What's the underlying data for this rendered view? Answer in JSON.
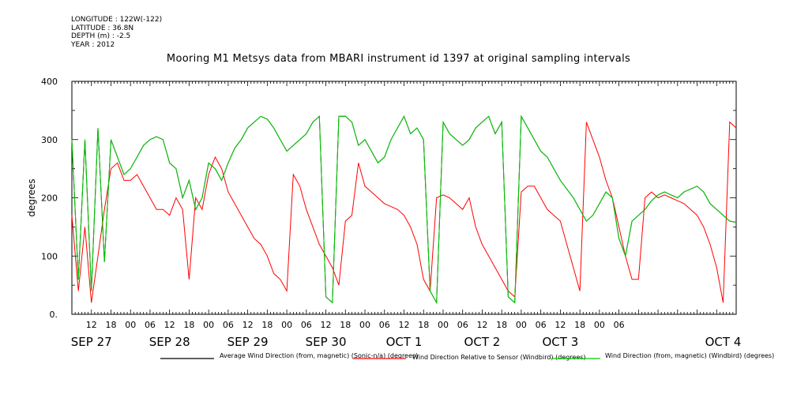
{
  "meta": {
    "longitude": "LONGITUDE : 122W(-122)",
    "latitude": "LATITUDE : 36.8N",
    "depth": "DEPTH (m) : -2.5",
    "year": "YEAR : 2012"
  },
  "chart_data": {
    "type": "line",
    "title": "Mooring M1 Metsys data from MBARI instrument id 1397 at original sampling intervals",
    "ylabel": "degrees",
    "xlabel": "",
    "ylim": [
      0,
      400
    ],
    "yticks": [
      "0.",
      "100",
      "200",
      "300",
      "400"
    ],
    "xlim_hours": [
      6,
      210
    ],
    "x_hour_ticks": [
      "12",
      "18",
      "00",
      "06",
      "12",
      "18",
      "00",
      "06",
      "12",
      "18",
      "00",
      "06",
      "12",
      "18",
      "00",
      "06",
      "12",
      "18",
      "00",
      "06",
      "12",
      "18",
      "00",
      "06",
      "12",
      "18",
      "00",
      "06"
    ],
    "day_labels": [
      "SEP 27",
      "SEP 28",
      "SEP 29",
      "SEP 30",
      "OCT 1",
      "OCT 2",
      "OCT 3",
      "OCT 4"
    ],
    "series": [
      {
        "name": "Average Wind Direction (from, magnetic) (Sonic-n/a) (degrees)",
        "color": "#000000",
        "x": [
          6,
          8,
          10,
          12,
          14,
          16,
          18,
          20,
          22,
          24,
          26,
          28,
          30,
          32,
          34,
          36,
          38,
          40,
          42,
          44,
          46,
          48,
          50,
          52,
          54,
          56,
          58,
          60,
          62,
          64,
          66,
          68,
          70,
          72,
          74,
          76,
          78,
          80,
          82,
          84,
          86,
          88,
          90,
          92,
          94,
          96,
          98,
          100,
          102,
          104,
          106,
          108,
          110,
          112,
          114,
          116,
          118,
          120,
          122,
          124,
          126,
          128,
          130,
          132,
          134,
          136,
          138,
          140,
          142,
          144,
          146,
          148,
          150,
          152,
          154,
          156,
          158,
          160,
          162,
          164,
          166,
          168,
          170,
          172,
          174,
          176,
          178,
          180,
          182,
          184,
          186,
          188,
          190,
          192,
          194,
          196,
          198,
          200,
          202,
          204,
          206,
          208,
          210
        ],
        "values": [
          300,
          60,
          300,
          40,
          320,
          90,
          300,
          270,
          240,
          250,
          270,
          290,
          300,
          305,
          300,
          260,
          250,
          200,
          230,
          180,
          200,
          260,
          250,
          230,
          260,
          285,
          300,
          320,
          330,
          340,
          335,
          320,
          300,
          280,
          290,
          300,
          310,
          330,
          340,
          30,
          20,
          340,
          340,
          330,
          290,
          300,
          280,
          260,
          270,
          300,
          320,
          340,
          310,
          320,
          300,
          40,
          20,
          330,
          310,
          300,
          290,
          300,
          320,
          330,
          340,
          310,
          330,
          30,
          20,
          340,
          320,
          300,
          280,
          270,
          250,
          230,
          215,
          200,
          180,
          160,
          170,
          190,
          210,
          200,
          130,
          100,
          160,
          170,
          180,
          195,
          205,
          210,
          205,
          200,
          210,
          215,
          220,
          210,
          190,
          180,
          170,
          160,
          158
        ]
      },
      {
        "name": "Wind Direction Relative to Sensor (Windbird) (degrees)",
        "color": "#ff0000",
        "x": [
          6,
          8,
          10,
          12,
          14,
          16,
          18,
          20,
          22,
          24,
          26,
          28,
          30,
          32,
          34,
          36,
          38,
          40,
          42,
          44,
          46,
          48,
          50,
          52,
          54,
          56,
          58,
          60,
          62,
          64,
          66,
          68,
          70,
          72,
          74,
          76,
          78,
          80,
          82,
          84,
          86,
          88,
          90,
          92,
          94,
          96,
          98,
          100,
          102,
          104,
          106,
          108,
          110,
          112,
          114,
          116,
          118,
          120,
          122,
          124,
          126,
          128,
          130,
          132,
          134,
          136,
          138,
          140,
          142,
          144,
          146,
          148,
          150,
          152,
          154,
          156,
          158,
          160,
          162,
          164,
          166,
          168,
          170,
          172,
          174,
          176,
          178,
          180,
          182,
          184,
          186,
          188,
          190,
          192,
          194,
          196,
          198,
          200,
          202,
          204,
          206,
          208,
          210
        ],
        "values": [
          170,
          40,
          150,
          20,
          100,
          180,
          250,
          260,
          230,
          230,
          240,
          220,
          200,
          180,
          180,
          170,
          200,
          180,
          60,
          200,
          180,
          240,
          270,
          250,
          210,
          190,
          170,
          150,
          130,
          120,
          100,
          70,
          60,
          40,
          240,
          220,
          180,
          150,
          120,
          100,
          80,
          50,
          160,
          170,
          260,
          220,
          210,
          200,
          190,
          185,
          180,
          170,
          150,
          120,
          60,
          40,
          200,
          205,
          200,
          190,
          180,
          200,
          150,
          120,
          100,
          80,
          60,
          40,
          30,
          210,
          220,
          220,
          200,
          180,
          170,
          160,
          120,
          80,
          40,
          330,
          300,
          270,
          230,
          200,
          150,
          100,
          60,
          60,
          200,
          210,
          200,
          205,
          200,
          195,
          190,
          180,
          170,
          150,
          120,
          80,
          20,
          330,
          320
        ]
      },
      {
        "name": "Wind Direction (from, magnetic) (Windbird) (degrees)",
        "color": "#00cc00",
        "x": [
          6,
          8,
          10,
          12,
          14,
          16,
          18,
          20,
          22,
          24,
          26,
          28,
          30,
          32,
          34,
          36,
          38,
          40,
          42,
          44,
          46,
          48,
          50,
          52,
          54,
          56,
          58,
          60,
          62,
          64,
          66,
          68,
          70,
          72,
          74,
          76,
          78,
          80,
          82,
          84,
          86,
          88,
          90,
          92,
          94,
          96,
          98,
          100,
          102,
          104,
          106,
          108,
          110,
          112,
          114,
          116,
          118,
          120,
          122,
          124,
          126,
          128,
          130,
          132,
          134,
          136,
          138,
          140,
          142,
          144,
          146,
          148,
          150,
          152,
          154,
          156,
          158,
          160,
          162,
          164,
          166,
          168,
          170,
          172,
          174,
          176,
          178,
          180,
          182,
          184,
          186,
          188,
          190,
          192,
          194,
          196,
          198,
          200,
          202,
          204,
          206,
          208,
          210
        ],
        "values": [
          300,
          60,
          300,
          40,
          320,
          90,
          300,
          270,
          240,
          250,
          270,
          290,
          300,
          305,
          300,
          260,
          250,
          200,
          230,
          180,
          200,
          260,
          250,
          230,
          260,
          285,
          300,
          320,
          330,
          340,
          335,
          320,
          300,
          280,
          290,
          300,
          310,
          330,
          340,
          30,
          20,
          340,
          340,
          330,
          290,
          300,
          280,
          260,
          270,
          300,
          320,
          340,
          310,
          320,
          300,
          40,
          20,
          330,
          310,
          300,
          290,
          300,
          320,
          330,
          340,
          310,
          330,
          30,
          20,
          340,
          320,
          300,
          280,
          270,
          250,
          230,
          215,
          200,
          180,
          160,
          170,
          190,
          210,
          200,
          130,
          100,
          160,
          170,
          180,
          195,
          205,
          210,
          205,
          200,
          210,
          215,
          220,
          210,
          190,
          180,
          170,
          160,
          158
        ]
      }
    ]
  }
}
